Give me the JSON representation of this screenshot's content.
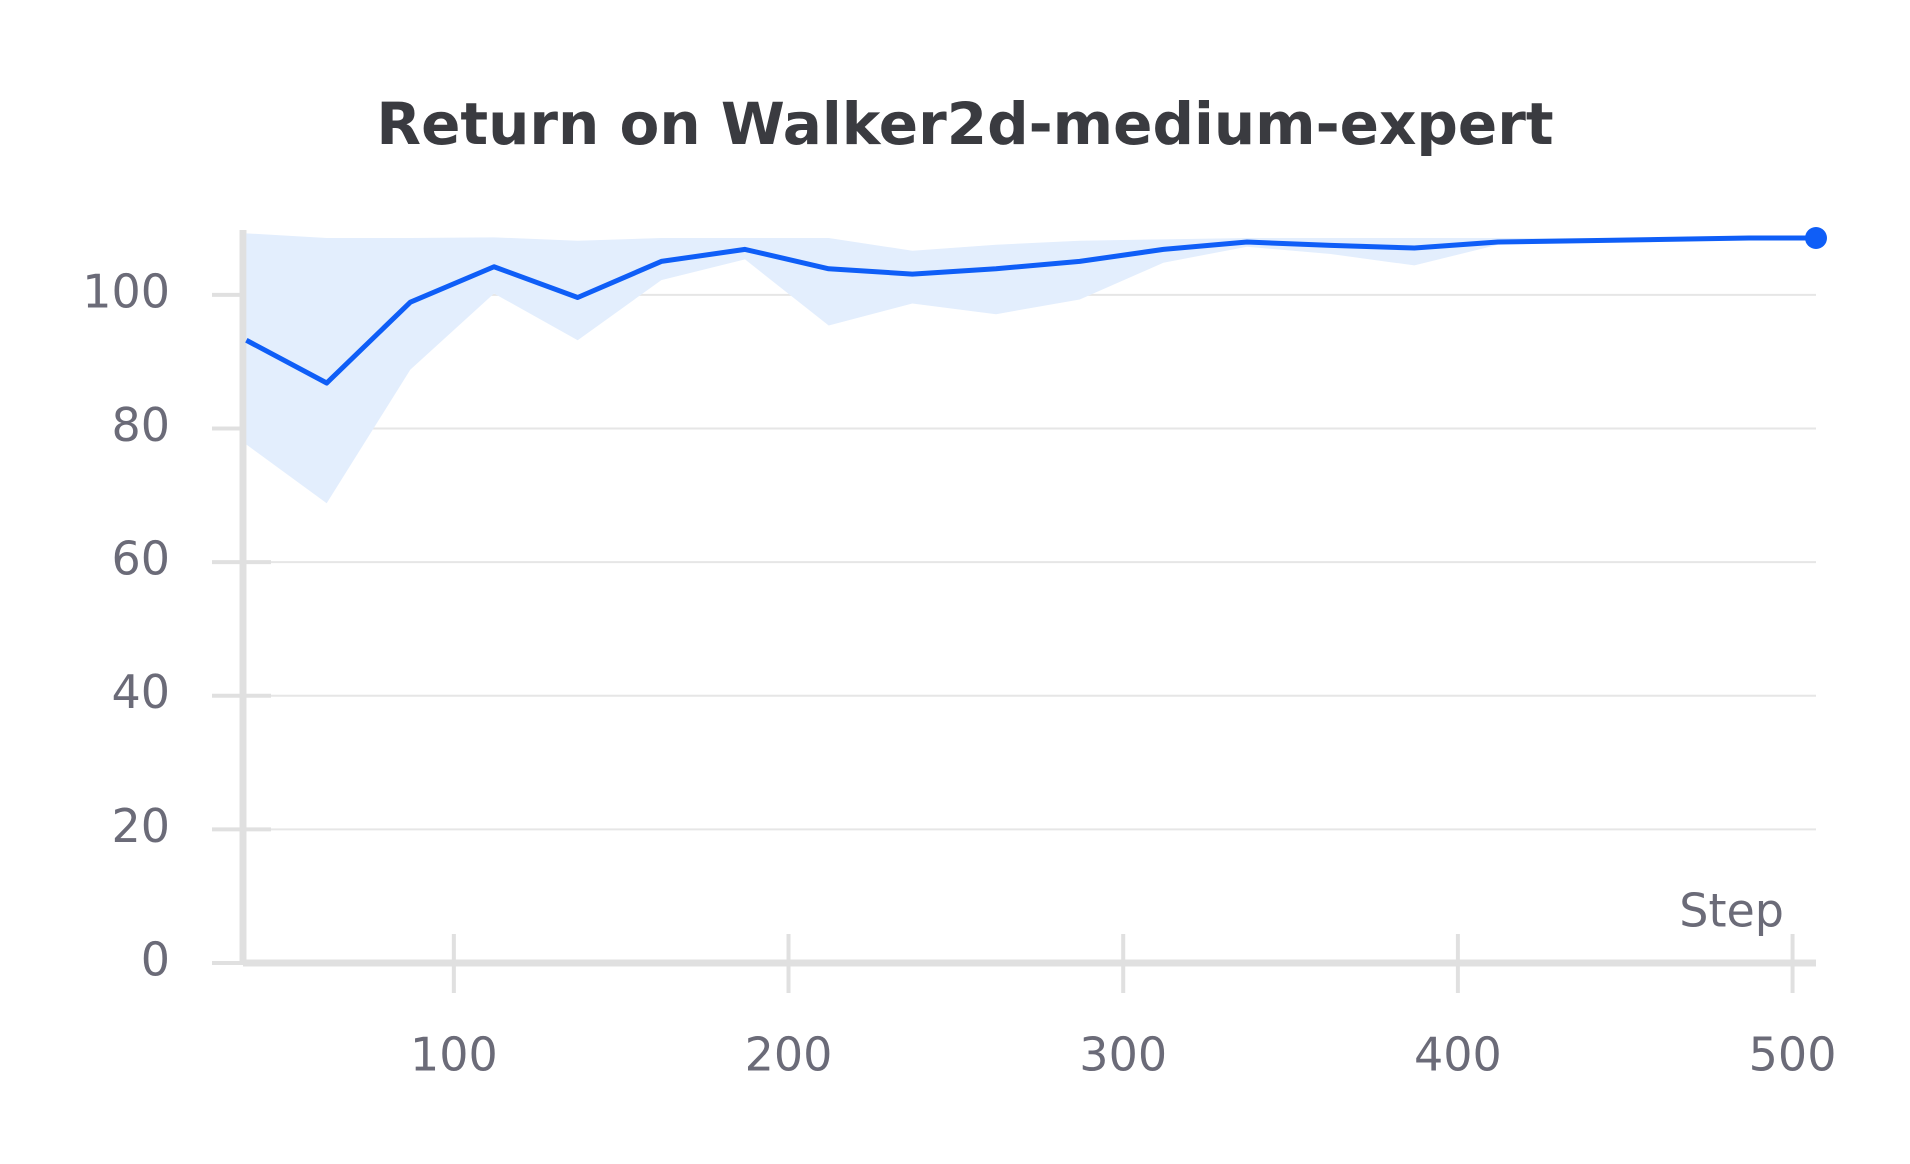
{
  "chart_data": {
    "type": "line",
    "title": "Return on Walker2d-medium-expert",
    "x_label": "Step",
    "x": [
      38,
      62,
      87,
      112,
      137,
      162,
      187,
      212,
      237,
      262,
      287,
      312,
      337,
      362,
      387,
      412,
      437,
      462,
      487,
      507
    ],
    "series": [
      {
        "color": "#0f5ef7",
        "band_color": "#e3eefd",
        "values": [
          93.2,
          86.8,
          98.9,
          104.2,
          99.6,
          105,
          106.8,
          103.9,
          103.1,
          103.9,
          105,
          106.8,
          107.9,
          107.4,
          107,
          107.9,
          108.1,
          108.3,
          108.5,
          108.5
        ],
        "upper": [
          109.2,
          108.5,
          108.5,
          108.6,
          108.1,
          108.5,
          108.5,
          108.5,
          106.6,
          107.5,
          108.1,
          108.3,
          108.5,
          108.5,
          108.5,
          108.5,
          108.5,
          108.5,
          108.5,
          108.5
        ],
        "lower": [
          77.6,
          68.8,
          88.8,
          100.2,
          93.2,
          102.2,
          105.3,
          95.4,
          98.7,
          97.1,
          99.3,
          104.8,
          107.2,
          106.1,
          104.4,
          107.5,
          107.9,
          108.2,
          108.4,
          108.5
        ]
      }
    ],
    "xlim": [
      37,
      507
    ],
    "ylim": [
      0,
      110
    ],
    "xticks": [
      100,
      200,
      300,
      400,
      500
    ],
    "yticks": [
      0,
      20,
      40,
      60,
      80,
      100
    ],
    "grid": true
  }
}
